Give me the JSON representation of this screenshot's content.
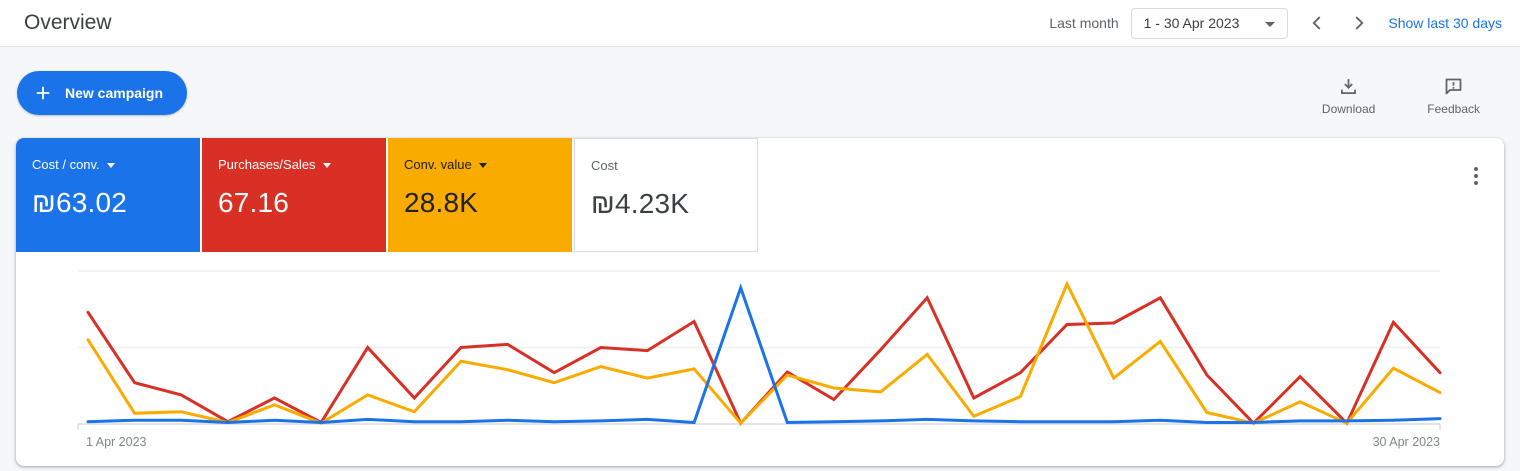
{
  "topbar": {
    "title": "Overview",
    "date_range_label": "Last month",
    "date_range_value": "1 - 30 Apr 2023",
    "show_link": "Show last 30 days"
  },
  "toolbar": {
    "new_campaign_label": "New campaign",
    "download_label": "Download",
    "feedback_label": "Feedback"
  },
  "metrics": [
    {
      "label": "Cost / conv.",
      "value": "₪63.02",
      "color": "#1a73e8",
      "text": "#ffffff",
      "has_dropdown": true
    },
    {
      "label": "Purchases/Sales",
      "value": "67.16",
      "color": "#d93025",
      "text": "#ffffff",
      "has_dropdown": true
    },
    {
      "label": "Conv. value",
      "value": "28.8K",
      "color": "#f9ab00",
      "text": "#202124",
      "has_dropdown": true
    },
    {
      "label": "Cost",
      "value": "₪4.23K",
      "color": "#ffffff",
      "text": "#3c4043",
      "has_dropdown": false
    }
  ],
  "chart_data": {
    "type": "line",
    "title": "Overview daily performance, 1 - 30 Apr 2023",
    "x": [
      1,
      2,
      3,
      4,
      5,
      6,
      7,
      8,
      9,
      10,
      11,
      12,
      13,
      14,
      15,
      16,
      17,
      18,
      19,
      20,
      21,
      22,
      23,
      24,
      25,
      26,
      27,
      28,
      29,
      30
    ],
    "x_axis_labels_shown": [
      "1 Apr 2023",
      "30 Apr 2023"
    ],
    "y_unit": "relative gridline units (no y tick labels shown; baseline=0, mid gridline=1, top gridline=2)",
    "ylim": [
      0,
      2
    ],
    "grid": true,
    "legend_position": "none",
    "series": [
      {
        "name": "Cost / conv.",
        "color": "#1a73e8",
        "values": [
          0.03,
          0.05,
          0.05,
          0.02,
          0.05,
          0.02,
          0.06,
          0.03,
          0.03,
          0.05,
          0.03,
          0.04,
          0.06,
          0.02,
          1.78,
          0.02,
          0.03,
          0.04,
          0.06,
          0.04,
          0.03,
          0.03,
          0.03,
          0.05,
          0.02,
          0.02,
          0.04,
          0.04,
          0.05,
          0.07
        ]
      },
      {
        "name": "Purchases/Sales",
        "color": "#d93025",
        "values": [
          1.46,
          0.54,
          0.38,
          0.03,
          0.34,
          0.02,
          1.0,
          0.34,
          1.0,
          1.04,
          0.67,
          1.0,
          0.96,
          1.34,
          0.01,
          0.68,
          0.32,
          0.97,
          1.65,
          0.34,
          0.67,
          1.3,
          1.32,
          1.65,
          0.64,
          0.01,
          0.62,
          0.01,
          1.33,
          0.67
        ]
      },
      {
        "name": "Conv. value",
        "color": "#f9ab00",
        "values": [
          1.1,
          0.14,
          0.16,
          0.02,
          0.25,
          0.01,
          0.38,
          0.16,
          0.82,
          0.71,
          0.54,
          0.75,
          0.6,
          0.72,
          0.01,
          0.64,
          0.47,
          0.42,
          0.91,
          0.1,
          0.36,
          1.83,
          0.6,
          1.08,
          0.15,
          0.01,
          0.29,
          0.01,
          0.73,
          0.41
        ]
      }
    ],
    "colors": {
      "accent_blue": "#1a73e8",
      "red": "#d93025",
      "yellow": "#f9ab00",
      "gridline": "#eef0f2",
      "baseline": "#dadce0",
      "axis_text": "#80868b"
    }
  }
}
